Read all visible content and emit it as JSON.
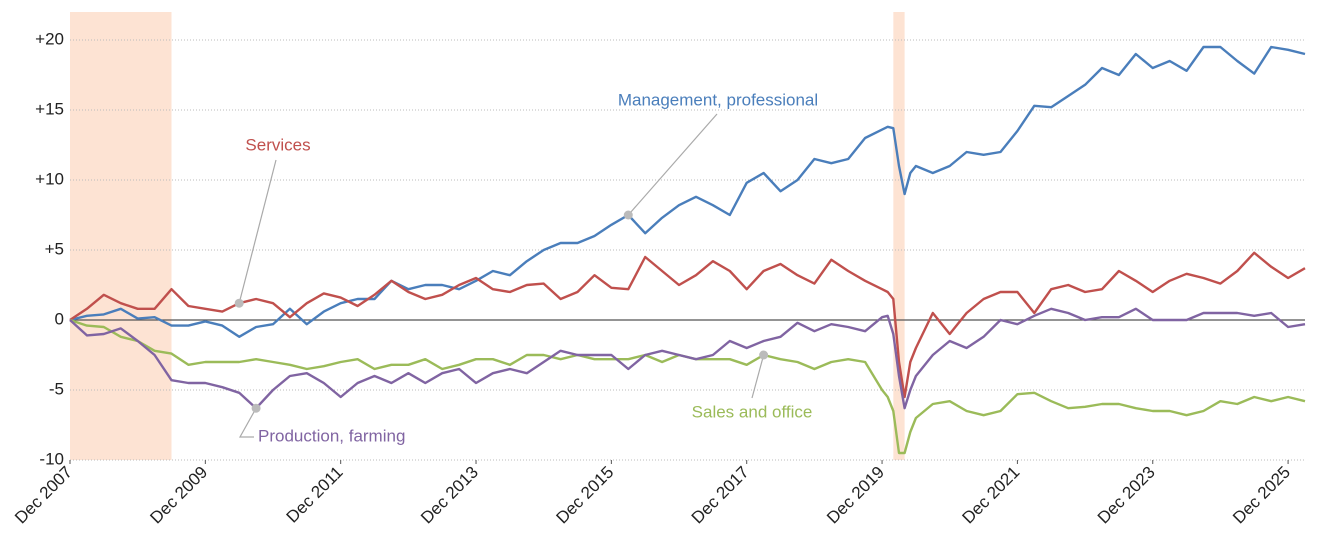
{
  "chart_data": {
    "type": "line",
    "x": [
      "2007-12",
      "2008-03",
      "2008-06",
      "2008-09",
      "2008-12",
      "2009-03",
      "2009-06",
      "2009-09",
      "2009-12",
      "2010-03",
      "2010-06",
      "2010-09",
      "2010-12",
      "2011-03",
      "2011-06",
      "2011-09",
      "2011-12",
      "2012-03",
      "2012-06",
      "2012-09",
      "2012-12",
      "2013-03",
      "2013-06",
      "2013-09",
      "2013-12",
      "2014-03",
      "2014-06",
      "2014-09",
      "2014-12",
      "2015-03",
      "2015-06",
      "2015-09",
      "2015-12",
      "2016-03",
      "2016-06",
      "2016-09",
      "2016-12",
      "2017-03",
      "2017-06",
      "2017-09",
      "2017-12",
      "2018-03",
      "2018-06",
      "2018-09",
      "2018-12",
      "2019-03",
      "2019-06",
      "2019-09",
      "2019-12",
      "2020-01",
      "2020-02",
      "2020-03",
      "2020-04",
      "2020-05",
      "2020-06",
      "2020-09",
      "2020-12",
      "2021-03",
      "2021-06",
      "2021-09",
      "2021-12",
      "2022-03",
      "2022-06",
      "2022-09",
      "2022-12",
      "2023-03",
      "2023-06",
      "2023-09",
      "2023-12",
      "2024-03",
      "2024-06",
      "2024-09",
      "2024-12",
      "2025-03",
      "2025-06",
      "2025-09",
      "2025-12",
      "2026-03"
    ],
    "series": [
      {
        "name": "Management, professional",
        "color": "#4a7ebb",
        "values": [
          0,
          0.3,
          0.4,
          0.8,
          0.1,
          0.2,
          -0.4,
          -0.4,
          -0.1,
          -0.4,
          -1.2,
          -0.5,
          -0.3,
          0.8,
          -0.3,
          0.6,
          1.2,
          1.5,
          1.5,
          2.8,
          2.2,
          2.5,
          2.5,
          2.2,
          2.8,
          3.5,
          3.2,
          4.2,
          5,
          5.5,
          5.5,
          6,
          6.8,
          7.5,
          6.2,
          7.3,
          8.2,
          8.8,
          8.2,
          7.5,
          9.8,
          10.5,
          9.2,
          10,
          11.5,
          11.2,
          11.5,
          13,
          13.6,
          13.8,
          13.7,
          11,
          9,
          10.5,
          11,
          10.5,
          11,
          12,
          11.8,
          12,
          13.5,
          15.3,
          15.2,
          16,
          16.8,
          18,
          17.5,
          19,
          18,
          18.5,
          17.8,
          19.5,
          19.5,
          18.5,
          17.6,
          19.5,
          19.3,
          19
        ]
      },
      {
        "name": "Services",
        "color": "#c0504d",
        "values": [
          0,
          0.8,
          1.8,
          1.2,
          0.8,
          0.8,
          2.2,
          1,
          0.8,
          0.6,
          1.2,
          1.5,
          1.2,
          0.2,
          1.2,
          1.9,
          1.6,
          1,
          1.8,
          2.8,
          2,
          1.5,
          1.8,
          2.5,
          3,
          2.2,
          2,
          2.5,
          2.6,
          1.5,
          2,
          3.2,
          2.3,
          2.2,
          4.5,
          3.5,
          2.5,
          3.2,
          4.2,
          3.5,
          2.2,
          3.5,
          4,
          3.2,
          2.6,
          4.3,
          3.5,
          2.8,
          2.2,
          2,
          1.5,
          -3,
          -5.5,
          -3,
          -2,
          0.5,
          -1,
          0.5,
          1.5,
          2,
          2,
          0.5,
          2.2,
          2.5,
          2,
          2.2,
          3.5,
          2.8,
          2,
          2.8,
          3.3,
          3,
          2.6,
          3.5,
          4.8,
          3.8,
          3,
          3.7
        ]
      },
      {
        "name": "Sales and office",
        "color": "#9bbb59",
        "values": [
          0,
          -0.4,
          -0.5,
          -1.2,
          -1.5,
          -2.2,
          -2.4,
          -3.2,
          -3,
          -3,
          -3,
          -2.8,
          -3,
          -3.2,
          -3.5,
          -3.3,
          -3,
          -2.8,
          -3.5,
          -3.2,
          -3.2,
          -2.8,
          -3.5,
          -3.2,
          -2.8,
          -2.8,
          -3.2,
          -2.5,
          -2.5,
          -2.8,
          -2.5,
          -2.8,
          -2.8,
          -2.8,
          -2.5,
          -3,
          -2.5,
          -2.8,
          -2.8,
          -2.8,
          -3.2,
          -2.5,
          -2.8,
          -3,
          -3.5,
          -3,
          -2.8,
          -3,
          -5,
          -5.5,
          -6.5,
          -9.5,
          -9.5,
          -8,
          -7,
          -6,
          -5.8,
          -6.5,
          -6.8,
          -6.5,
          -5.3,
          -5.2,
          -5.8,
          -6.3,
          -6.2,
          -6,
          -6,
          -6.3,
          -6.5,
          -6.5,
          -6.8,
          -6.5,
          -5.8,
          -6,
          -5.5,
          -5.8,
          -5.5,
          -5.8
        ]
      },
      {
        "name": "Production, farming",
        "color": "#8064a2",
        "values": [
          0,
          -1.1,
          -1,
          -0.6,
          -1.5,
          -2.5,
          -4.3,
          -4.5,
          -4.5,
          -4.8,
          -5.2,
          -6.3,
          -5,
          -4,
          -3.8,
          -4.5,
          -5.5,
          -4.5,
          -4,
          -4.5,
          -3.8,
          -4.5,
          -3.8,
          -3.5,
          -4.5,
          -3.8,
          -3.5,
          -3.8,
          -3,
          -2.2,
          -2.5,
          -2.5,
          -2.5,
          -3.5,
          -2.5,
          -2.2,
          -2.5,
          -2.8,
          -2.5,
          -1.5,
          -2,
          -1.5,
          -1.2,
          -0.2,
          -0.8,
          -0.3,
          -0.5,
          -0.8,
          0.2,
          0.3,
          -1,
          -4,
          -6.3,
          -5,
          -4,
          -2.5,
          -1.5,
          -2,
          -1.2,
          0,
          -0.3,
          0.3,
          0.8,
          0.5,
          0,
          0.2,
          0.2,
          0.8,
          0,
          0,
          0,
          0.5,
          0.5,
          0.5,
          0.3,
          0.5,
          -0.5,
          -0.3
        ]
      }
    ],
    "xlim": [
      "2007-12",
      "2026-03"
    ],
    "xticks": [
      {
        "value": "2007-12",
        "label": "Dec 2007"
      },
      {
        "value": "2009-12",
        "label": "Dec 2009"
      },
      {
        "value": "2011-12",
        "label": "Dec 2011"
      },
      {
        "value": "2013-12",
        "label": "Dec 2013"
      },
      {
        "value": "2015-12",
        "label": "Dec 2015"
      },
      {
        "value": "2017-12",
        "label": "Dec 2017"
      },
      {
        "value": "2019-12",
        "label": "Dec 2019"
      },
      {
        "value": "2021-12",
        "label": "Dec 2021"
      },
      {
        "value": "2023-12",
        "label": "Dec 2023"
      },
      {
        "value": "2025-12",
        "label": "Dec 2025"
      }
    ],
    "ylim": [
      -10,
      22
    ],
    "yticks": [
      -10,
      -5,
      0,
      {
        "value": 5,
        "label": "+5"
      },
      {
        "value": 10,
        "label": "+10"
      },
      {
        "value": 15,
        "label": "+15"
      },
      {
        "value": 20,
        "label": "+20"
      }
    ],
    "grid": true,
    "shaded_regions": [
      {
        "start": "2007-12",
        "end": "2009-06",
        "color": "#fde3d3"
      },
      {
        "start": "2020-02",
        "end": "2020-04",
        "color": "#fde3d3"
      }
    ]
  }
}
